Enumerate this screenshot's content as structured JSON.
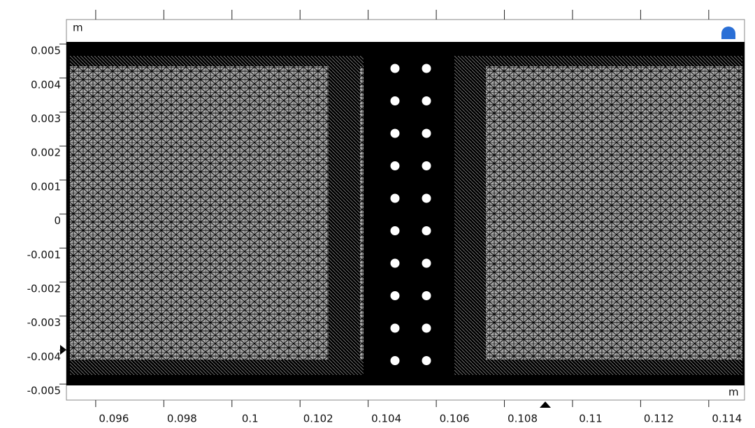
{
  "chart_data": {
    "type": "mesh",
    "x_unit": "m",
    "y_unit": "m",
    "xlim": [
      0.09514,
      0.11505
    ],
    "ylim": [
      -0.00547,
      0.00572
    ],
    "xticks": [
      0.096,
      0.098,
      0.1,
      0.102,
      0.104,
      0.106,
      0.108,
      0.11,
      0.112,
      0.114
    ],
    "yticks": [
      0.005,
      0.004,
      0.003,
      0.002,
      0.001,
      0,
      -0.001,
      -0.002,
      -0.003,
      -0.004,
      -0.005
    ]
  }
}
